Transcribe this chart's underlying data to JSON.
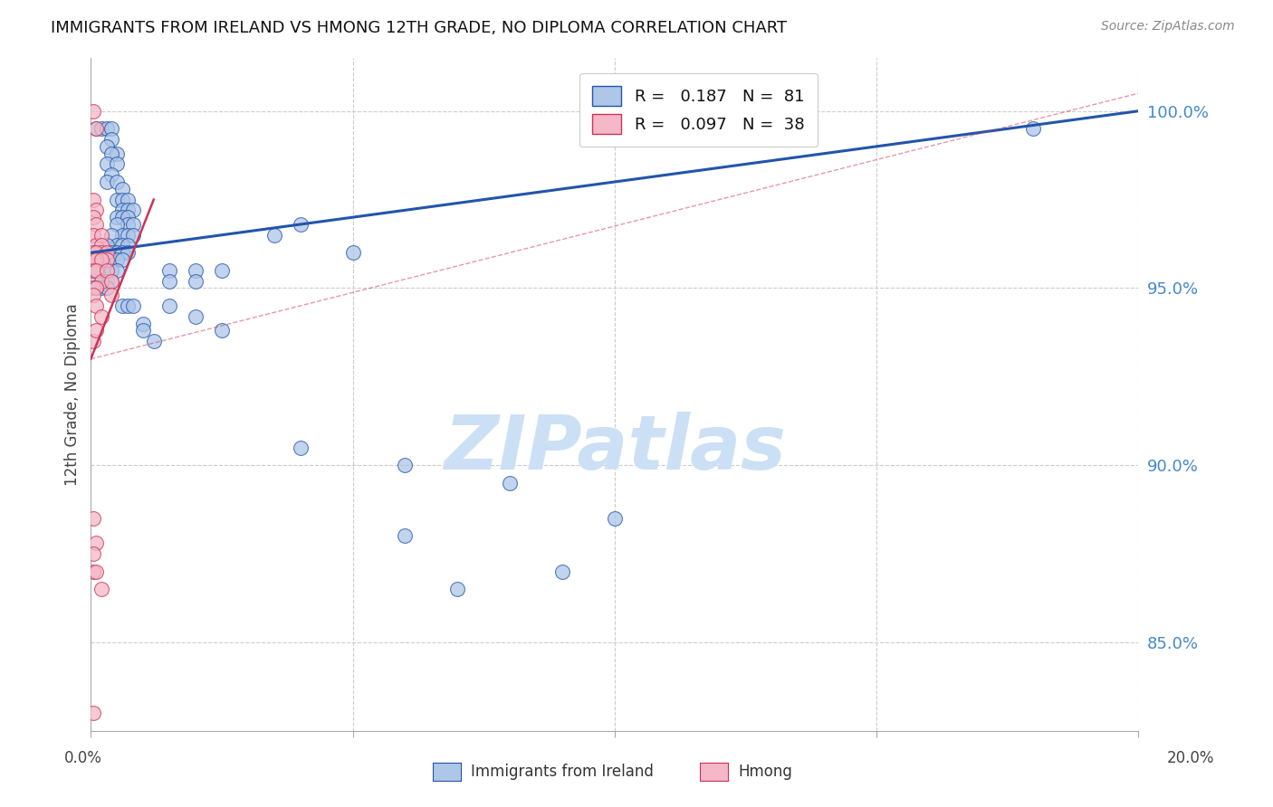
{
  "title": "IMMIGRANTS FROM IRELAND VS HMONG 12TH GRADE, NO DIPLOMA CORRELATION CHART",
  "source": "Source: ZipAtlas.com",
  "ylabel": "12th Grade, No Diploma",
  "right_yticks": [
    85.0,
    90.0,
    95.0,
    100.0
  ],
  "legend_ireland": {
    "R": 0.187,
    "N": 81
  },
  "legend_hmong": {
    "R": 0.097,
    "N": 38
  },
  "ireland_color": "#aec6e8",
  "hmong_color": "#f4b8c8",
  "ireland_line_color": "#2255aa",
  "hmong_line_color": "#cc3355",
  "watermark_color": "#cce0f5",
  "watermark": "ZIPatlas",
  "xmin": 0.0,
  "xmax": 0.2,
  "ymin": 82.5,
  "ymax": 101.5,
  "ireland_line": [
    0.0,
    96.0,
    0.2,
    100.0
  ],
  "hmong_line": [
    0.0,
    93.0,
    0.012,
    97.5
  ],
  "hmong_dashed_line": [
    0.0,
    93.0,
    0.2,
    100.5
  ],
  "ireland_points": [
    [
      0.001,
      99.5
    ],
    [
      0.002,
      99.5
    ],
    [
      0.003,
      99.5
    ],
    [
      0.004,
      99.5
    ],
    [
      0.004,
      99.2
    ],
    [
      0.003,
      99.0
    ],
    [
      0.005,
      98.8
    ],
    [
      0.004,
      98.8
    ],
    [
      0.003,
      98.5
    ],
    [
      0.005,
      98.5
    ],
    [
      0.004,
      98.2
    ],
    [
      0.003,
      98.0
    ],
    [
      0.005,
      98.0
    ],
    [
      0.006,
      97.8
    ],
    [
      0.005,
      97.5
    ],
    [
      0.006,
      97.5
    ],
    [
      0.007,
      97.5
    ],
    [
      0.006,
      97.2
    ],
    [
      0.007,
      97.2
    ],
    [
      0.008,
      97.2
    ],
    [
      0.005,
      97.0
    ],
    [
      0.006,
      97.0
    ],
    [
      0.007,
      97.0
    ],
    [
      0.007,
      96.8
    ],
    [
      0.008,
      96.8
    ],
    [
      0.005,
      96.8
    ],
    [
      0.006,
      96.5
    ],
    [
      0.007,
      96.5
    ],
    [
      0.008,
      96.5
    ],
    [
      0.004,
      96.5
    ],
    [
      0.005,
      96.2
    ],
    [
      0.006,
      96.2
    ],
    [
      0.007,
      96.2
    ],
    [
      0.003,
      96.2
    ],
    [
      0.004,
      96.0
    ],
    [
      0.005,
      96.0
    ],
    [
      0.006,
      96.0
    ],
    [
      0.007,
      96.0
    ],
    [
      0.002,
      96.0
    ],
    [
      0.003,
      95.8
    ],
    [
      0.004,
      95.8
    ],
    [
      0.005,
      95.8
    ],
    [
      0.006,
      95.8
    ],
    [
      0.001,
      95.8
    ],
    [
      0.002,
      95.5
    ],
    [
      0.003,
      95.5
    ],
    [
      0.004,
      95.5
    ],
    [
      0.005,
      95.5
    ],
    [
      0.001,
      95.5
    ],
    [
      0.002,
      95.2
    ],
    [
      0.003,
      95.2
    ],
    [
      0.004,
      95.2
    ],
    [
      0.001,
      95.2
    ],
    [
      0.002,
      95.0
    ],
    [
      0.003,
      95.0
    ],
    [
      0.001,
      95.0
    ],
    [
      0.015,
      95.5
    ],
    [
      0.015,
      95.2
    ],
    [
      0.02,
      95.5
    ],
    [
      0.02,
      95.2
    ],
    [
      0.035,
      96.5
    ],
    [
      0.04,
      96.8
    ],
    [
      0.05,
      96.0
    ],
    [
      0.01,
      94.0
    ],
    [
      0.015,
      94.5
    ],
    [
      0.025,
      95.5
    ],
    [
      0.006,
      94.5
    ],
    [
      0.007,
      94.5
    ],
    [
      0.008,
      94.5
    ],
    [
      0.01,
      93.8
    ],
    [
      0.012,
      93.5
    ],
    [
      0.02,
      94.2
    ],
    [
      0.025,
      93.8
    ],
    [
      0.04,
      90.5
    ],
    [
      0.06,
      90.0
    ],
    [
      0.08,
      89.5
    ],
    [
      0.1,
      88.5
    ],
    [
      0.06,
      88.0
    ],
    [
      0.18,
      99.5
    ],
    [
      0.07,
      86.5
    ],
    [
      0.09,
      87.0
    ]
  ],
  "hmong_points": [
    [
      0.0005,
      100.0
    ],
    [
      0.001,
      99.5
    ],
    [
      0.0005,
      97.5
    ],
    [
      0.001,
      97.2
    ],
    [
      0.0005,
      97.0
    ],
    [
      0.001,
      96.8
    ],
    [
      0.0005,
      96.5
    ],
    [
      0.001,
      96.2
    ],
    [
      0.002,
      96.5
    ],
    [
      0.002,
      96.2
    ],
    [
      0.002,
      96.0
    ],
    [
      0.0005,
      96.0
    ],
    [
      0.001,
      96.0
    ],
    [
      0.003,
      96.0
    ],
    [
      0.003,
      95.8
    ],
    [
      0.0005,
      95.8
    ],
    [
      0.001,
      95.8
    ],
    [
      0.002,
      95.8
    ],
    [
      0.0005,
      95.5
    ],
    [
      0.001,
      95.5
    ],
    [
      0.002,
      95.2
    ],
    [
      0.003,
      95.5
    ],
    [
      0.0005,
      95.0
    ],
    [
      0.001,
      95.0
    ],
    [
      0.004,
      95.2
    ],
    [
      0.0005,
      94.8
    ],
    [
      0.001,
      94.5
    ],
    [
      0.002,
      94.2
    ],
    [
      0.004,
      94.8
    ],
    [
      0.0005,
      93.5
    ],
    [
      0.001,
      93.8
    ],
    [
      0.0005,
      88.5
    ],
    [
      0.001,
      87.8
    ],
    [
      0.0005,
      87.5
    ],
    [
      0.0005,
      87.0
    ],
    [
      0.001,
      87.0
    ],
    [
      0.002,
      86.5
    ],
    [
      0.0005,
      83.0
    ]
  ]
}
